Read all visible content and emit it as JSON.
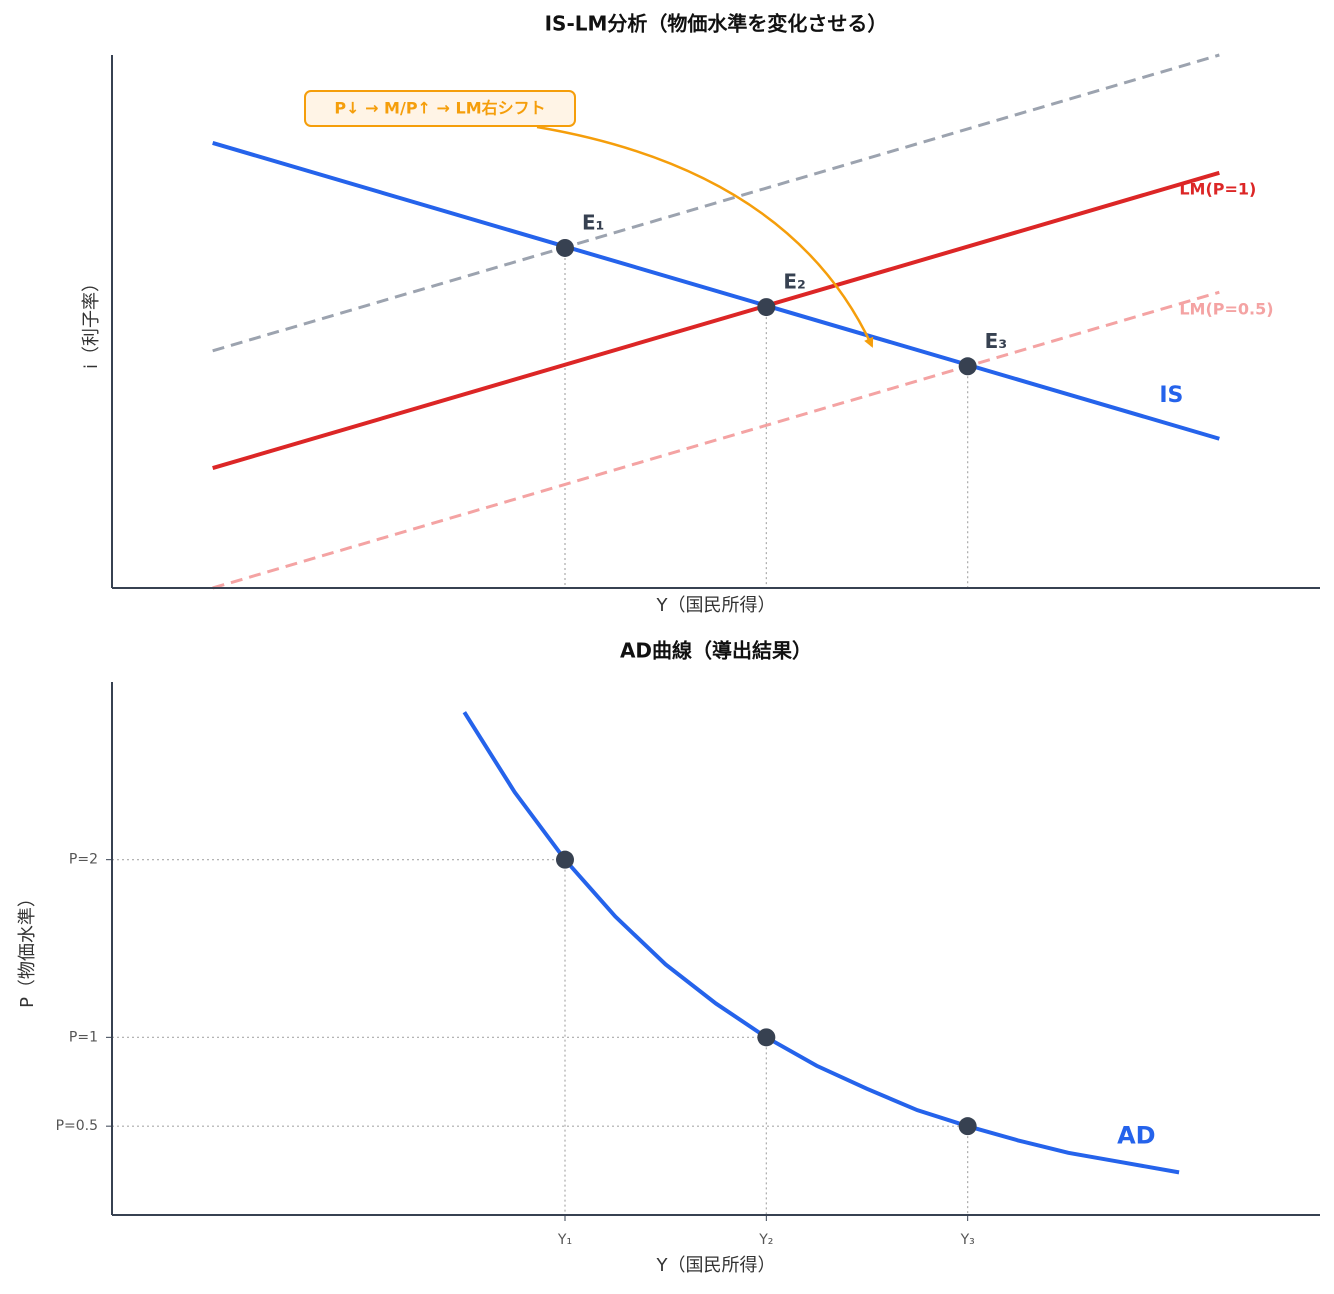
{
  "chart_data": [
    {
      "type": "line",
      "title": "IS-LM分析（物価水準を変化させる）",
      "xlabel": "Y（国民所得）",
      "ylabel": "i（利子率）",
      "xlim": [
        0,
        12
      ],
      "ylim": [
        0,
        10
      ],
      "series": [
        {
          "name": "IS",
          "color": "#2563eb",
          "style": "solid",
          "x": [
            1,
            11
          ],
          "values": [
            8.35,
            2.8
          ]
        },
        {
          "name": "LM(P=1)",
          "color": "#dc2626",
          "style": "solid",
          "x": [
            1,
            11
          ],
          "values": [
            2.25,
            7.79
          ]
        },
        {
          "name": "LM(P=0.5)",
          "color": "#f4a3a3",
          "style": "dashed",
          "x": [
            1,
            11
          ],
          "values": [
            0,
            5.55
          ]
        },
        {
          "color": "#9ca3af",
          "style": "dashed",
          "x": [
            1,
            11
          ],
          "values": [
            4.45,
            10
          ]
        }
      ],
      "points": {
        "color": "#374151",
        "labels": [
          "E₁",
          "E₂",
          "E₃"
        ],
        "x": [
          4.5,
          6.5,
          8.5
        ],
        "values": [
          6.38,
          5.27,
          4.16
        ]
      },
      "annotation": {
        "text": "P↓ → M/P↑ → LM右シフト",
        "color": "#f59e0b"
      }
    },
    {
      "type": "line",
      "title": "AD曲線（導出結果）",
      "xlabel": "Y（国民所得）",
      "ylabel": "P（物価水準）",
      "xlim": [
        0,
        12
      ],
      "ylim": [
        0,
        3
      ],
      "xticks": [
        {
          "value": 4.5,
          "label": "Y₁"
        },
        {
          "value": 6.5,
          "label": "Y₂"
        },
        {
          "value": 8.5,
          "label": "Y₃"
        }
      ],
      "yticks": [
        {
          "value": 0.5,
          "label": "P=0.5"
        },
        {
          "value": 1,
          "label": "P=1"
        },
        {
          "value": 2,
          "label": "P=2"
        }
      ],
      "series": [
        {
          "name": "AD",
          "color": "#2563eb",
          "style": "solid",
          "x": [
            3.5,
            4,
            4.5,
            5,
            5.5,
            6,
            6.5,
            7,
            7.5,
            8,
            8.5,
            9,
            9.5,
            10,
            10.6
          ],
          "values": [
            2.83,
            2.38,
            2,
            1.68,
            1.41,
            1.19,
            1,
            0.84,
            0.71,
            0.59,
            0.5,
            0.42,
            0.35,
            0.3,
            0.24
          ]
        }
      ],
      "points": {
        "color": "#374151",
        "x": [
          4.5,
          6.5,
          8.5
        ],
        "values": [
          2,
          1,
          0.5
        ]
      }
    }
  ]
}
